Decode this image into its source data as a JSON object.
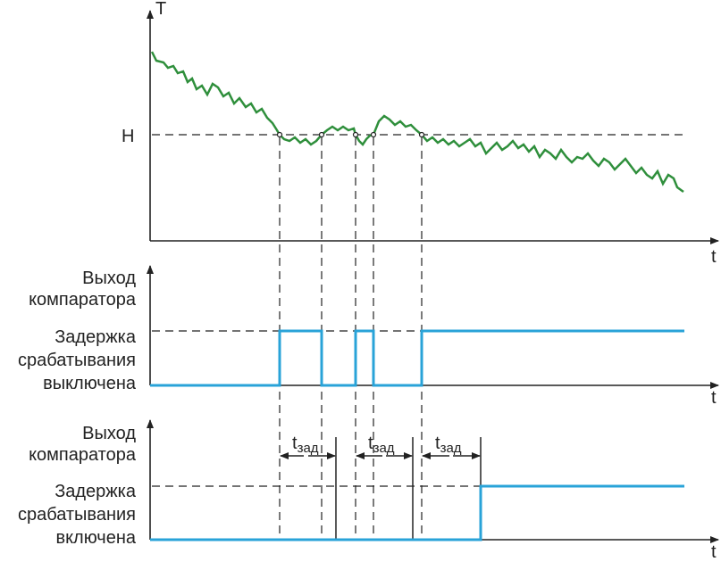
{
  "graph": {
    "y_axis_label": "T",
    "x_axis_label": "t",
    "threshold_label": "H"
  },
  "panels": [
    {
      "title_lines": [
        "Выход",
        "компаратора"
      ],
      "state_lines": [
        "Задержка",
        "срабатывания",
        "выключена"
      ],
      "x_axis_label": "t"
    },
    {
      "title_lines": [
        "Выход",
        "компаратора"
      ],
      "state_lines": [
        "Задержка",
        "срабатывания",
        "включена"
      ],
      "x_axis_label": "t",
      "delay_labels": [
        {
          "main": "t",
          "sub": "зад"
        },
        {
          "main": "t",
          "sub": "зад"
        },
        {
          "main": "t",
          "sub": "зад"
        }
      ]
    }
  ]
}
